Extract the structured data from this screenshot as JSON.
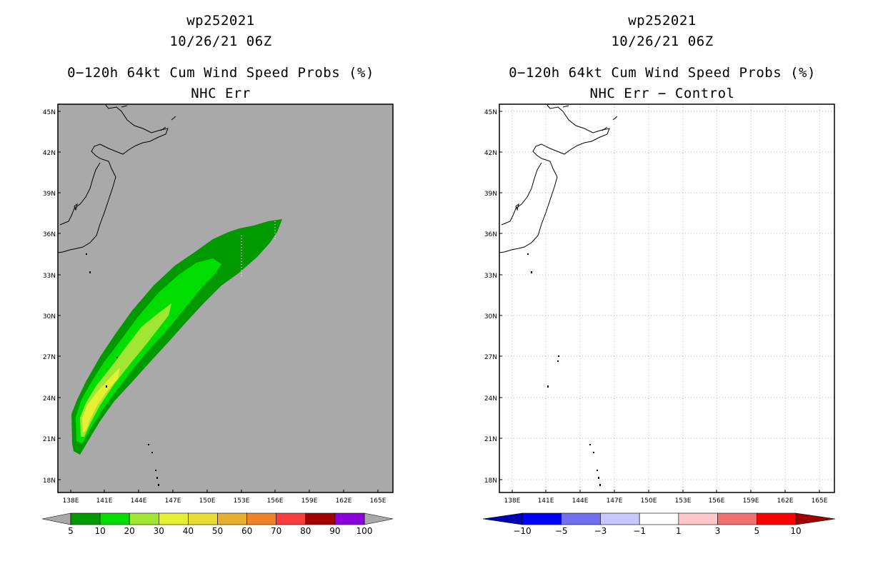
{
  "left": {
    "title1": "wp252021",
    "title2": "10/26/21 06Z",
    "title3": "0−120h 64kt Cum Wind Speed Probs (%)",
    "title4": "NHC Err",
    "lat_labels": [
      "45N",
      "42N",
      "39N",
      "36N",
      "33N",
      "30N",
      "27N",
      "24N",
      "21N",
      "18N"
    ],
    "lon_labels": [
      "138E",
      "141E",
      "144E",
      "147E",
      "150E",
      "153E",
      "156E",
      "159E",
      "162E",
      "165E"
    ],
    "colorbar": {
      "colors": [
        "#009900",
        "#00dd00",
        "#a0e632",
        "#e6f032",
        "#e6dc32",
        "#e6af2d",
        "#f08228",
        "#fa3c3c",
        "#a50000",
        "#8c00dc"
      ],
      "labels": [
        "5",
        "10",
        "20",
        "30",
        "40",
        "50",
        "60",
        "70",
        "80",
        "90",
        "100"
      ]
    },
    "colors": {
      "land_sea": "#a9a9a9",
      "prob_5": "#009900",
      "prob_10": "#00dd00",
      "prob_20": "#a0e632",
      "prob_30": "#e6f032"
    }
  },
  "right": {
    "title1": "wp252021",
    "title2": "10/26/21 06Z",
    "title3": "0−120h 64kt Cum Wind Speed Probs (%)",
    "title4": "NHC Err − Control",
    "lat_labels": [
      "45N",
      "42N",
      "39N",
      "36N",
      "33N",
      "30N",
      "27N",
      "24N",
      "21N",
      "18N"
    ],
    "lon_labels": [
      "138E",
      "141E",
      "144E",
      "147E",
      "150E",
      "153E",
      "156E",
      "159E",
      "162E",
      "165E"
    ],
    "colorbar": {
      "colors": [
        "#0000b4",
        "#0000ff",
        "#7070f0",
        "#c8c8ff",
        "#ffffff",
        "#ffc8c8",
        "#f07070",
        "#ff0000",
        "#a00000"
      ],
      "labels": [
        "−10",
        "−5",
        "−3",
        "−1",
        "1",
        "3",
        "5",
        "10"
      ]
    }
  }
}
